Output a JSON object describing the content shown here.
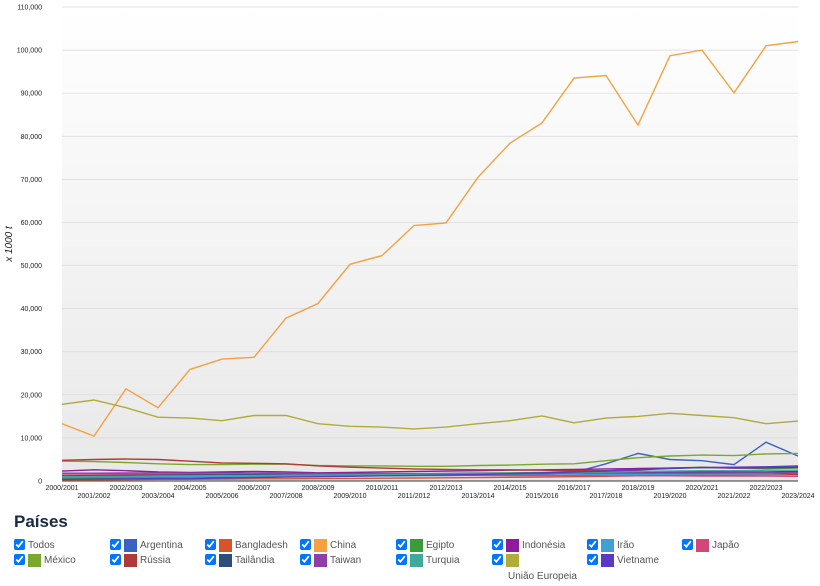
{
  "chart_data": {
    "type": "line",
    "y_label": "x 1000 t",
    "legend_title": "Países",
    "legend_all_label": "Todos",
    "categories": [
      "2000/2001",
      "2001/2002",
      "2002/2003",
      "2003/2004",
      "2004/2005",
      "2005/2006",
      "2006/2007",
      "2007/2008",
      "2008/2009",
      "2009/2010",
      "2010/2011",
      "2011/2012",
      "2012/2013",
      "2013/2014",
      "2014/2015",
      "2015/2016",
      "2016/2017",
      "2017/2018",
      "2018/2019",
      "2019/2020",
      "2020/2021",
      "2021/2022",
      "2022/2023",
      "2023/2024"
    ],
    "ylim": [
      0,
      110000
    ],
    "yticks": [
      {
        "value": 0,
        "label": "0"
      },
      {
        "value": 10000,
        "label": "10,000"
      },
      {
        "value": 20000,
        "label": "20,000"
      },
      {
        "value": 30000,
        "label": "30,000"
      },
      {
        "value": 40000,
        "label": "40,000"
      },
      {
        "value": 50000,
        "label": "50,000"
      },
      {
        "value": 60000,
        "label": "60,000"
      },
      {
        "value": 70000,
        "label": "70,000"
      },
      {
        "value": 80000,
        "label": "80,000"
      },
      {
        "value": 90000,
        "label": "90,000"
      },
      {
        "value": 100000,
        "label": "100,000"
      },
      {
        "value": 110000,
        "label": "110,000"
      }
    ],
    "grid": true,
    "series": [
      {
        "name": "Argentina",
        "color": "#3a62c4",
        "values": [
          800,
          700,
          800,
          900,
          1000,
          1000,
          1100,
          1200,
          1300,
          1200,
          1200,
          1300,
          1300,
          1400,
          1500,
          1600,
          2000,
          4000,
          6400,
          5000,
          4700,
          3800,
          9000,
          5800
        ]
      },
      {
        "name": "Bangladesh",
        "color": "#d9532a",
        "values": [
          300,
          300,
          350,
          400,
          400,
          450,
          500,
          500,
          550,
          600,
          650,
          700,
          750,
          800,
          850,
          900,
          1000,
          1100,
          1200,
          1300,
          1400,
          1400,
          1500,
          1500
        ]
      },
      {
        "name": "China",
        "color": "#f5a142",
        "values": [
          13300,
          10400,
          21400,
          17000,
          25900,
          28300,
          28700,
          37800,
          41200,
          50300,
          52300,
          59300,
          59900,
          70500,
          78400,
          83100,
          93500,
          94100,
          82600,
          98700,
          100000,
          90100,
          101000,
          102000
        ]
      },
      {
        "name": "Egipto",
        "color": "#3a9b3a",
        "values": [
          700,
          750,
          800,
          850,
          900,
          1000,
          1100,
          1200,
          1300,
          1400,
          1500,
          1600,
          1700,
          1800,
          1900,
          2000,
          2200,
          2400,
          2700,
          3000,
          3200,
          3000,
          2900,
          3000
        ]
      },
      {
        "name": "Indonésia",
        "color": "#8e1a9e",
        "values": [
          2300,
          2600,
          2400,
          2100,
          2000,
          2100,
          2200,
          2100,
          1900,
          2000,
          2100,
          2200,
          2300,
          2400,
          2500,
          2600,
          2700,
          2800,
          2900,
          3000,
          3100,
          3000,
          3100,
          3200
        ]
      },
      {
        "name": "Irão",
        "color": "#3fa0d4",
        "values": [
          900,
          950,
          1000,
          1000,
          1050,
          1100,
          1100,
          1150,
          1200,
          1200,
          1250,
          1300,
          1300,
          1350,
          1400,
          1400,
          1450,
          1500,
          1500,
          1550,
          1600,
          1600,
          1650,
          1700
        ]
      },
      {
        "name": "Japão",
        "color": "#d4457a",
        "values": [
          1600,
          1600,
          1550,
          1500,
          1500,
          1450,
          1450,
          1400,
          1400,
          1350,
          1350,
          1300,
          1300,
          1300,
          1250,
          1250,
          1250,
          1200,
          1200,
          1200,
          1150,
          1150,
          1150,
          1100
        ]
      },
      {
        "name": "México",
        "color": "#7ba82b",
        "values": [
          4600,
          4500,
          4300,
          4000,
          3800,
          3800,
          3900,
          3900,
          3600,
          3500,
          3500,
          3400,
          3400,
          3600,
          3700,
          3900,
          4000,
          4700,
          5400,
          5800,
          6000,
          5900,
          6300,
          6400
        ]
      },
      {
        "name": "Rússia",
        "color": "#b03a3a",
        "values": [
          4800,
          5000,
          5100,
          5000,
          4600,
          4200,
          4100,
          4000,
          3500,
          3200,
          3000,
          2800,
          2700,
          2600,
          2600,
          2500,
          2400,
          2400,
          2300,
          2200,
          2200,
          2100,
          2000,
          1500
        ]
      },
      {
        "name": "Tailândia",
        "color": "#2d4e7a",
        "values": [
          1200,
          1250,
          1300,
          1350,
          1400,
          1450,
          1500,
          1550,
          1600,
          1650,
          1700,
          1700,
          1750,
          1800,
          1800,
          1850,
          1900,
          1950,
          2000,
          2000,
          2050,
          2100,
          2100,
          2200
        ]
      },
      {
        "name": "Taiwan",
        "color": "#8e3fa8",
        "values": [
          1800,
          1800,
          1850,
          1850,
          1800,
          1800,
          1800,
          1750,
          1750,
          1750,
          1700,
          1700,
          1700,
          1700,
          1750,
          1750,
          1800,
          1800,
          1800,
          1850,
          1850,
          1900,
          1900,
          1950
        ]
      },
      {
        "name": "Turquia",
        "color": "#3faa9a",
        "values": [
          1000,
          1050,
          1100,
          1150,
          1200,
          1250,
          1300,
          1350,
          1400,
          1450,
          1500,
          1550,
          1600,
          1700,
          1800,
          1900,
          2000,
          2100,
          2200,
          2300,
          2400,
          2400,
          2500,
          2500
        ]
      },
      {
        "name": "União Europeia",
        "color": "#b0ab3a",
        "values": [
          17800,
          18800,
          17000,
          14800,
          14600,
          14000,
          15200,
          15200,
          13300,
          12700,
          12500,
          12100,
          12500,
          13300,
          14000,
          15100,
          13500,
          14600,
          15000,
          15700,
          15200,
          14700,
          13300,
          13900
        ]
      },
      {
        "name": "Vietname",
        "color": "#5a3ac4",
        "values": [
          400,
          450,
          500,
          550,
          600,
          700,
          800,
          900,
          1000,
          1100,
          1200,
          1300,
          1400,
          1500,
          1700,
          1900,
          2100,
          2300,
          2600,
          2900,
          3100,
          3200,
          3300,
          3500
        ]
      }
    ]
  }
}
